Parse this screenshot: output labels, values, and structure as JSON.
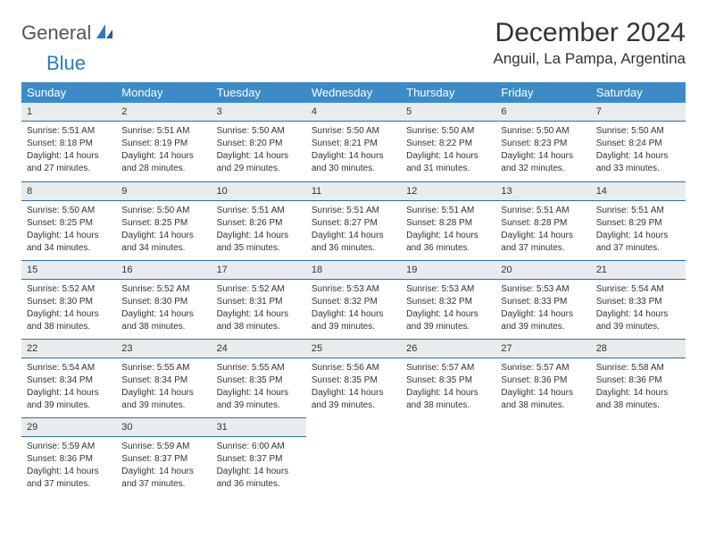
{
  "logo": {
    "text1": "General",
    "text2": "Blue"
  },
  "title": "December 2024",
  "location": "Anguil, La Pampa, Argentina",
  "colors": {
    "header_bg": "#3b8bc8",
    "daynum_bg": "#e9ecef",
    "rule": "#2f6fa8",
    "logo_blue": "#2b7bbf"
  },
  "weekdays": [
    "Sunday",
    "Monday",
    "Tuesday",
    "Wednesday",
    "Thursday",
    "Friday",
    "Saturday"
  ],
  "weeks": [
    [
      {
        "n": "1",
        "sr": "Sunrise: 5:51 AM",
        "ss": "Sunset: 8:18 PM",
        "d1": "Daylight: 14 hours",
        "d2": "and 27 minutes."
      },
      {
        "n": "2",
        "sr": "Sunrise: 5:51 AM",
        "ss": "Sunset: 8:19 PM",
        "d1": "Daylight: 14 hours",
        "d2": "and 28 minutes."
      },
      {
        "n": "3",
        "sr": "Sunrise: 5:50 AM",
        "ss": "Sunset: 8:20 PM",
        "d1": "Daylight: 14 hours",
        "d2": "and 29 minutes."
      },
      {
        "n": "4",
        "sr": "Sunrise: 5:50 AM",
        "ss": "Sunset: 8:21 PM",
        "d1": "Daylight: 14 hours",
        "d2": "and 30 minutes."
      },
      {
        "n": "5",
        "sr": "Sunrise: 5:50 AM",
        "ss": "Sunset: 8:22 PM",
        "d1": "Daylight: 14 hours",
        "d2": "and 31 minutes."
      },
      {
        "n": "6",
        "sr": "Sunrise: 5:50 AM",
        "ss": "Sunset: 8:23 PM",
        "d1": "Daylight: 14 hours",
        "d2": "and 32 minutes."
      },
      {
        "n": "7",
        "sr": "Sunrise: 5:50 AM",
        "ss": "Sunset: 8:24 PM",
        "d1": "Daylight: 14 hours",
        "d2": "and 33 minutes."
      }
    ],
    [
      {
        "n": "8",
        "sr": "Sunrise: 5:50 AM",
        "ss": "Sunset: 8:25 PM",
        "d1": "Daylight: 14 hours",
        "d2": "and 34 minutes."
      },
      {
        "n": "9",
        "sr": "Sunrise: 5:50 AM",
        "ss": "Sunset: 8:25 PM",
        "d1": "Daylight: 14 hours",
        "d2": "and 34 minutes."
      },
      {
        "n": "10",
        "sr": "Sunrise: 5:51 AM",
        "ss": "Sunset: 8:26 PM",
        "d1": "Daylight: 14 hours",
        "d2": "and 35 minutes."
      },
      {
        "n": "11",
        "sr": "Sunrise: 5:51 AM",
        "ss": "Sunset: 8:27 PM",
        "d1": "Daylight: 14 hours",
        "d2": "and 36 minutes."
      },
      {
        "n": "12",
        "sr": "Sunrise: 5:51 AM",
        "ss": "Sunset: 8:28 PM",
        "d1": "Daylight: 14 hours",
        "d2": "and 36 minutes."
      },
      {
        "n": "13",
        "sr": "Sunrise: 5:51 AM",
        "ss": "Sunset: 8:28 PM",
        "d1": "Daylight: 14 hours",
        "d2": "and 37 minutes."
      },
      {
        "n": "14",
        "sr": "Sunrise: 5:51 AM",
        "ss": "Sunset: 8:29 PM",
        "d1": "Daylight: 14 hours",
        "d2": "and 37 minutes."
      }
    ],
    [
      {
        "n": "15",
        "sr": "Sunrise: 5:52 AM",
        "ss": "Sunset: 8:30 PM",
        "d1": "Daylight: 14 hours",
        "d2": "and 38 minutes."
      },
      {
        "n": "16",
        "sr": "Sunrise: 5:52 AM",
        "ss": "Sunset: 8:30 PM",
        "d1": "Daylight: 14 hours",
        "d2": "and 38 minutes."
      },
      {
        "n": "17",
        "sr": "Sunrise: 5:52 AM",
        "ss": "Sunset: 8:31 PM",
        "d1": "Daylight: 14 hours",
        "d2": "and 38 minutes."
      },
      {
        "n": "18",
        "sr": "Sunrise: 5:53 AM",
        "ss": "Sunset: 8:32 PM",
        "d1": "Daylight: 14 hours",
        "d2": "and 39 minutes."
      },
      {
        "n": "19",
        "sr": "Sunrise: 5:53 AM",
        "ss": "Sunset: 8:32 PM",
        "d1": "Daylight: 14 hours",
        "d2": "and 39 minutes."
      },
      {
        "n": "20",
        "sr": "Sunrise: 5:53 AM",
        "ss": "Sunset: 8:33 PM",
        "d1": "Daylight: 14 hours",
        "d2": "and 39 minutes."
      },
      {
        "n": "21",
        "sr": "Sunrise: 5:54 AM",
        "ss": "Sunset: 8:33 PM",
        "d1": "Daylight: 14 hours",
        "d2": "and 39 minutes."
      }
    ],
    [
      {
        "n": "22",
        "sr": "Sunrise: 5:54 AM",
        "ss": "Sunset: 8:34 PM",
        "d1": "Daylight: 14 hours",
        "d2": "and 39 minutes."
      },
      {
        "n": "23",
        "sr": "Sunrise: 5:55 AM",
        "ss": "Sunset: 8:34 PM",
        "d1": "Daylight: 14 hours",
        "d2": "and 39 minutes."
      },
      {
        "n": "24",
        "sr": "Sunrise: 5:55 AM",
        "ss": "Sunset: 8:35 PM",
        "d1": "Daylight: 14 hours",
        "d2": "and 39 minutes."
      },
      {
        "n": "25",
        "sr": "Sunrise: 5:56 AM",
        "ss": "Sunset: 8:35 PM",
        "d1": "Daylight: 14 hours",
        "d2": "and 39 minutes."
      },
      {
        "n": "26",
        "sr": "Sunrise: 5:57 AM",
        "ss": "Sunset: 8:35 PM",
        "d1": "Daylight: 14 hours",
        "d2": "and 38 minutes."
      },
      {
        "n": "27",
        "sr": "Sunrise: 5:57 AM",
        "ss": "Sunset: 8:36 PM",
        "d1": "Daylight: 14 hours",
        "d2": "and 38 minutes."
      },
      {
        "n": "28",
        "sr": "Sunrise: 5:58 AM",
        "ss": "Sunset: 8:36 PM",
        "d1": "Daylight: 14 hours",
        "d2": "and 38 minutes."
      }
    ],
    [
      {
        "n": "29",
        "sr": "Sunrise: 5:59 AM",
        "ss": "Sunset: 8:36 PM",
        "d1": "Daylight: 14 hours",
        "d2": "and 37 minutes."
      },
      {
        "n": "30",
        "sr": "Sunrise: 5:59 AM",
        "ss": "Sunset: 8:37 PM",
        "d1": "Daylight: 14 hours",
        "d2": "and 37 minutes."
      },
      {
        "n": "31",
        "sr": "Sunrise: 6:00 AM",
        "ss": "Sunset: 8:37 PM",
        "d1": "Daylight: 14 hours",
        "d2": "and 36 minutes."
      },
      null,
      null,
      null,
      null
    ]
  ]
}
